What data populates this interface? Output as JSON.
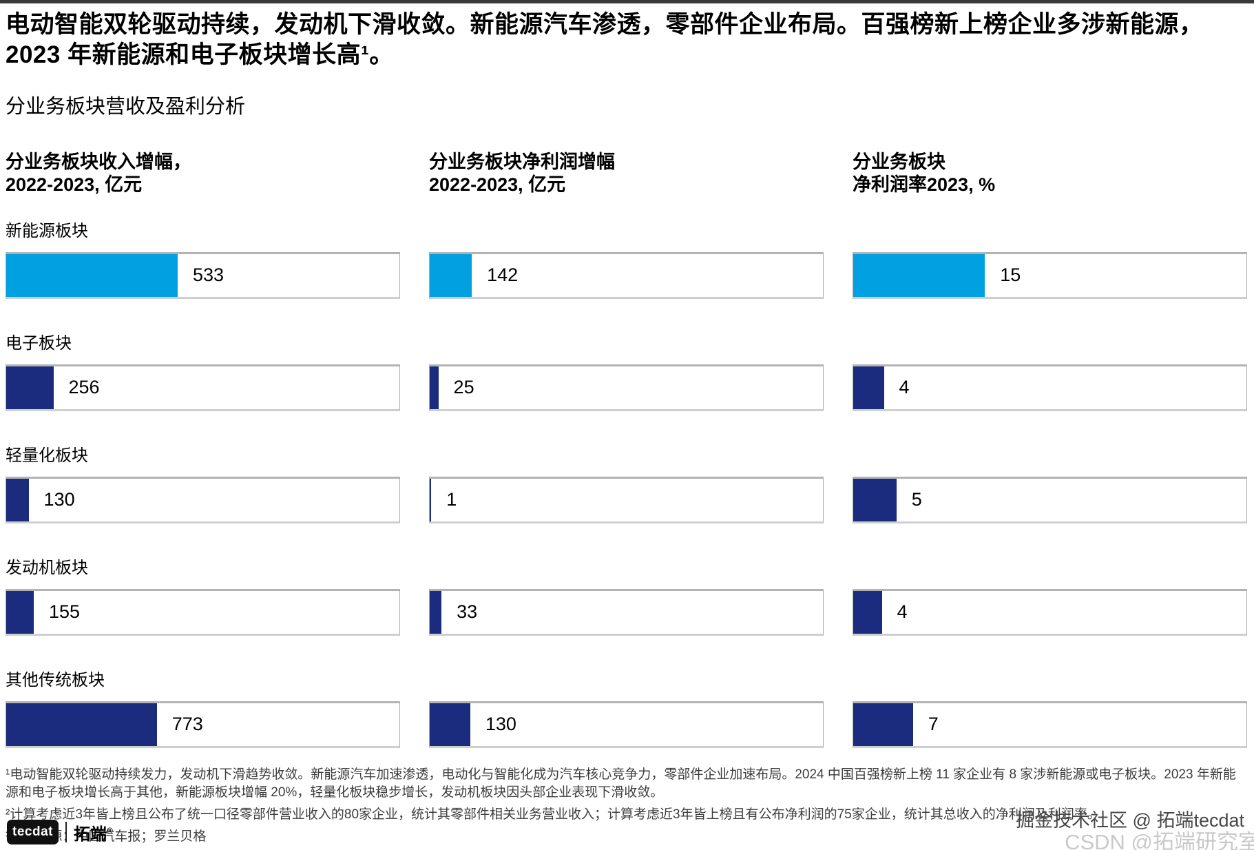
{
  "title": "电动智能双轮驱动持续，发动机下滑收敛。新能源汽车渗透，零部件企业布局。百强榜新上榜企业多涉新能源，2023 年新能源和电子板块增长高¹。",
  "subtitle": "分业务板块营收及盈利分析",
  "columns": [
    {
      "header_line1": "分业务板块收入增幅，",
      "header_line2": "2022-2023, 亿元"
    },
    {
      "header_line1": "分业务板块净利润增幅",
      "header_line2": "2022-2023, 亿元"
    },
    {
      "header_line1": "分业务板块",
      "header_line2": "净利润率2023, %"
    }
  ],
  "rows": [
    {
      "label": "新能源板块",
      "color": "#00A0E1",
      "values": [
        "533",
        "142",
        "15"
      ],
      "widths_pct": [
        43.6,
        10.7,
        33.5
      ]
    },
    {
      "label": "电子板块",
      "color": "#1B2B7D",
      "values": [
        "256",
        "25",
        "4"
      ],
      "widths_pct": [
        12.0,
        2.2,
        7.8
      ]
    },
    {
      "label": "轻量化板块",
      "color": "#1B2B7D",
      "values": [
        "130",
        "1",
        "5"
      ],
      "widths_pct": [
        5.7,
        0.4,
        11.0
      ]
    },
    {
      "label": "发动机板块",
      "color": "#1B2B7D",
      "values": [
        "155",
        "33",
        "4"
      ],
      "widths_pct": [
        7.0,
        3.0,
        7.3
      ]
    },
    {
      "label": "其他传统板块",
      "color": "#1B2B7D",
      "values": [
        "773",
        "130",
        "7"
      ],
      "widths_pct": [
        38.3,
        10.3,
        15.2
      ]
    }
  ],
  "footnotes": [
    "¹电动智能双轮驱动持续发力，发动机下滑趋势收敛。新能源汽车加速渗透，电动化与智能化成为汽车核心竞争力，零部件企业加速布局。2024 中国百强榜新上榜 11 家企业有 8 家涉新能源或电子板块。2023 年新能源和电子板块增长高于其他，新能源板块增幅 20%，轻量化板块稳步增长，发动机板块因头部企业表现下滑收敛。",
    "²计算考虑近3年皆上榜且公布了统一口径零部件营业收入的80家企业，统计其零部件相关业务营业收入；计算考虑近3年皆上榜且有公布净利润的75家企业，统计其总收入的净利润及利润率。",
    "³资料来源：中国汽车报；罗兰贝格"
  ],
  "logo": {
    "box_text": "tecdat",
    "brand": "拓端",
    "reg": "®"
  },
  "watermarks": {
    "wm1": "掘金技术社区 @ 拓端tecdat",
    "wm2": "CSDN @拓端研究室"
  },
  "colors": {
    "highlight_blue": "#00A0E1",
    "navy_blue": "#1B2B7D",
    "box_border": "#ABABAB"
  },
  "chart_data": {
    "type": "bar",
    "orientation": "horizontal",
    "title": "分业务板块营收及盈利分析",
    "categories": [
      "新能源板块",
      "电子板块",
      "轻量化板块",
      "发动机板块",
      "其他传统板块"
    ],
    "series": [
      {
        "name": "分业务板块收入增幅 2022-2023, 亿元",
        "values": [
          533,
          256,
          130,
          155,
          773
        ]
      },
      {
        "name": "分业务板块净利润增幅 2022-2023, 亿元",
        "values": [
          142,
          25,
          1,
          33,
          130
        ]
      },
      {
        "name": "分业务板块净利润率2023, %",
        "values": [
          15,
          4,
          5,
          4,
          7
        ]
      }
    ],
    "legend_position": "none",
    "grid": false,
    "highlight_category": "新能源板块",
    "data_labels": true
  }
}
